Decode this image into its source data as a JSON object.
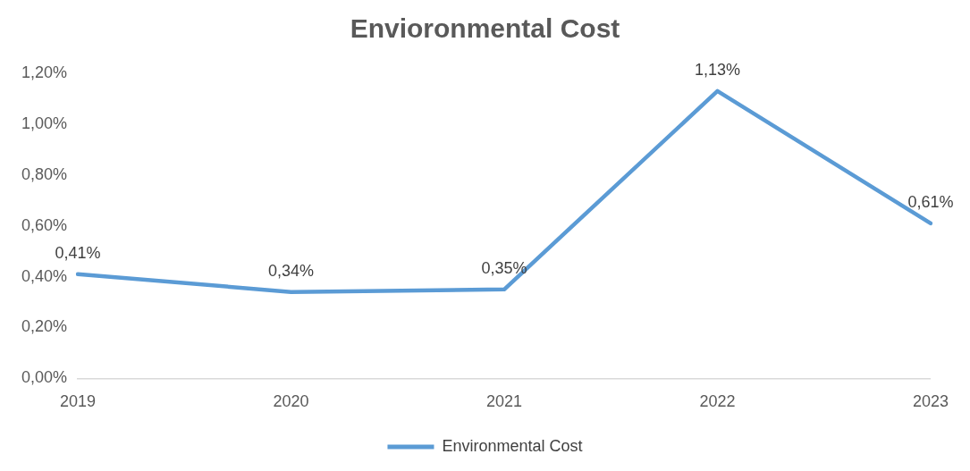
{
  "chart_data": {
    "type": "line",
    "title": "Envioronmental Cost",
    "categories": [
      "2019",
      "2020",
      "2021",
      "2022",
      "2023"
    ],
    "series": [
      {
        "name": "Environmental Cost",
        "color": "#5b9bd5",
        "values": [
          0.41,
          0.34,
          0.35,
          1.13,
          0.61
        ],
        "value_labels": [
          "0,41%",
          "0,34%",
          "0,35%",
          "1,13%",
          "0,61%"
        ]
      }
    ],
    "ylim": [
      0,
      1.2
    ],
    "yticks": [
      {
        "value": 0,
        "label": "0,00%"
      },
      {
        "value": 0.2,
        "label": "0,20%"
      },
      {
        "value": 0.4,
        "label": "0,40%"
      },
      {
        "value": 0.6,
        "label": "0,60%"
      },
      {
        "value": 0.8,
        "label": "0,80%"
      },
      {
        "value": 1.0,
        "label": "1,00%"
      },
      {
        "value": 1.2,
        "label": "1,20%"
      }
    ],
    "grid": false,
    "legend": "bottom",
    "marker": "none",
    "line_style": "solid"
  }
}
